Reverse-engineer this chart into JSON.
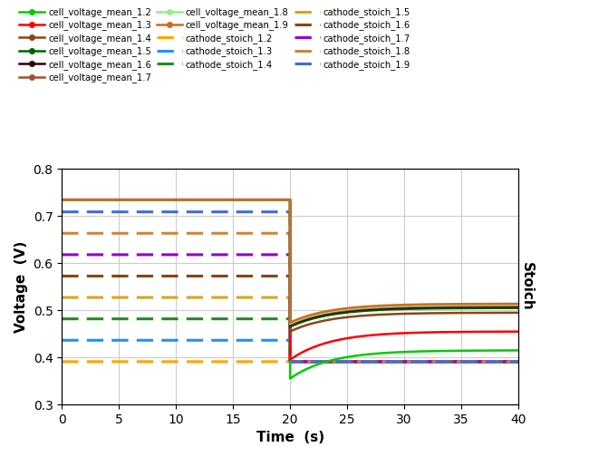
{
  "title": "",
  "xlabel": "Time  (s)",
  "ylabel": "Voltage  (V)",
  "ylabel2": "Stoich",
  "xlim": [
    0,
    40
  ],
  "t_step": 20,
  "cell_voltage_series": [
    {
      "label": "cell_voltage_mean_1.2",
      "color": "#00cc00",
      "high": 0.735,
      "low_init": 0.355,
      "low_final": 0.415
    },
    {
      "label": "cell_voltage_mean_1.3",
      "color": "#ff0000",
      "high": 0.735,
      "low_init": 0.395,
      "low_final": 0.455
    },
    {
      "label": "cell_voltage_mean_1.4",
      "color": "#8B4513",
      "high": 0.735,
      "low_init": 0.455,
      "low_final": 0.495
    },
    {
      "label": "cell_voltage_mean_1.5",
      "color": "#006400",
      "high": 0.735,
      "low_init": 0.465,
      "low_final": 0.505
    },
    {
      "label": "cell_voltage_mean_1.6",
      "color": "#2F0000",
      "high": 0.735,
      "low_init": 0.468,
      "low_final": 0.508
    },
    {
      "label": "cell_voltage_mean_1.7",
      "color": "#A0522D",
      "high": 0.735,
      "low_init": 0.47,
      "low_final": 0.51
    },
    {
      "label": "cell_voltage_mean_1.8",
      "color": "#90EE90",
      "high": 0.735,
      "low_init": 0.472,
      "low_final": 0.512
    },
    {
      "label": "cell_voltage_mean_1.9",
      "color": "#D2691E",
      "high": 0.735,
      "low_init": 0.474,
      "low_final": 0.514
    }
  ],
  "cathode_stoich_series": [
    {
      "label": "cathode_stoich_1.2",
      "color": "#FFA500",
      "high_stoich": 1.2
    },
    {
      "label": "cathode_stoich_1.3",
      "color": "#1E90FF",
      "high_stoich": 1.3
    },
    {
      "label": "cathode_stoich_1.4",
      "color": "#228B22",
      "high_stoich": 1.4
    },
    {
      "label": "cathode_stoich_1.5",
      "color": "#DAA520",
      "high_stoich": 1.5
    },
    {
      "label": "cathode_stoich_1.6",
      "color": "#8B4513",
      "high_stoich": 1.6
    },
    {
      "label": "cathode_stoich_1.7",
      "color": "#9400D3",
      "high_stoich": 1.7
    },
    {
      "label": "cathode_stoich_1.8",
      "color": "#CD853F",
      "high_stoich": 1.8
    },
    {
      "label": "cathode_stoich_1.9",
      "color": "#4169E1",
      "high_stoich": 1.9
    }
  ],
  "stoich_after_step": 1.2,
  "stoich_low_final": 1.2,
  "voltage_high": 0.735,
  "voltage_ylim_low": 0.3,
  "voltage_ylim_high": 0.8,
  "stoich_ylim_low": 1.0,
  "stoich_ylim_high": 2.1,
  "tau_voltage": 3.5,
  "background_color": "#ffffff",
  "grid_color": "#cccccc",
  "grid_linewidth": 0.8
}
